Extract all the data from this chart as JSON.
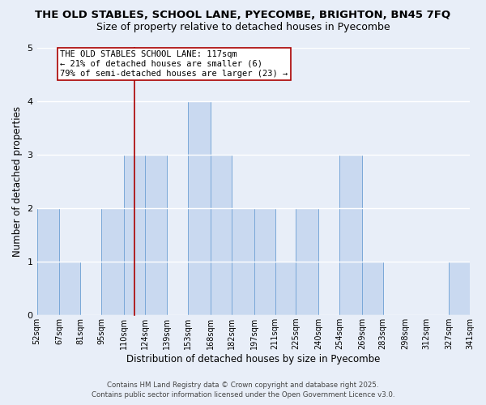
{
  "title": "THE OLD STABLES, SCHOOL LANE, PYECOMBE, BRIGHTON, BN45 7FQ",
  "subtitle": "Size of property relative to detached houses in Pyecombe",
  "xlabel": "Distribution of detached houses by size in Pyecombe",
  "ylabel": "Number of detached properties",
  "bin_edges": [
    52,
    67,
    81,
    95,
    110,
    124,
    139,
    153,
    168,
    182,
    197,
    211,
    225,
    240,
    254,
    269,
    283,
    298,
    312,
    327,
    341
  ],
  "counts": [
    2,
    1,
    0,
    2,
    3,
    3,
    0,
    4,
    3,
    2,
    2,
    1,
    2,
    0,
    3,
    1,
    0,
    0,
    0,
    1
  ],
  "bar_color": "#c9d9f0",
  "bar_edge_color": "#7aa8d8",
  "ylim": [
    0,
    5
  ],
  "yticks": [
    0,
    1,
    2,
    3,
    4,
    5
  ],
  "background_color": "#e8eef8",
  "grid_color": "#ffffff",
  "property_line_x": 117,
  "property_line_color": "#aa0000",
  "annotation_text": "THE OLD STABLES SCHOOL LANE: 117sqm\n← 21% of detached houses are smaller (6)\n79% of semi-detached houses are larger (23) →",
  "annotation_box_color": "#ffffff",
  "annotation_box_edge_color": "#aa0000",
  "footnote1": "Contains HM Land Registry data © Crown copyright and database right 2025.",
  "footnote2": "Contains public sector information licensed under the Open Government Licence v3.0.",
  "title_fontsize": 9.5,
  "subtitle_fontsize": 9,
  "tick_label_fontsize": 7,
  "axis_label_fontsize": 8.5,
  "annotation_fontsize": 7.5
}
